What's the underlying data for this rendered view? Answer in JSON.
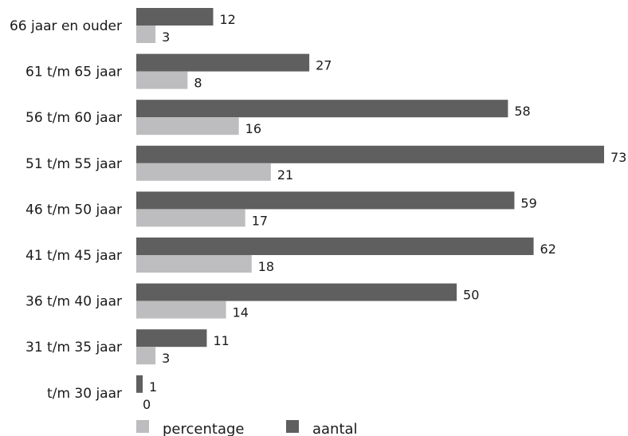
{
  "chart_data": {
    "type": "bar",
    "orientation": "horizontal",
    "categories": [
      "66 jaar en ouder",
      "61 t/m 65 jaar",
      "56 t/m 60 jaar",
      "51 t/m 55 jaar",
      "46 t/m 50 jaar",
      "41 t/m 45 jaar",
      "36 t/m 40 jaar",
      "31 t/m 35 jaar",
      "t/m 30 jaar"
    ],
    "series": [
      {
        "name": "aantal",
        "color": "#5f5f5f",
        "values": [
          12,
          27,
          58,
          73,
          59,
          62,
          50,
          11,
          1
        ]
      },
      {
        "name": "percentage",
        "color": "#bdbdbf",
        "values": [
          3,
          8,
          16,
          21,
          17,
          18,
          14,
          3,
          0
        ]
      }
    ],
    "xlim": [
      0,
      73
    ],
    "grid": false,
    "legend": {
      "position": "bottom",
      "items": [
        {
          "label": "percentage",
          "color": "#bdbdbf"
        },
        {
          "label": "aantal",
          "color": "#5f5f5f"
        }
      ]
    }
  }
}
